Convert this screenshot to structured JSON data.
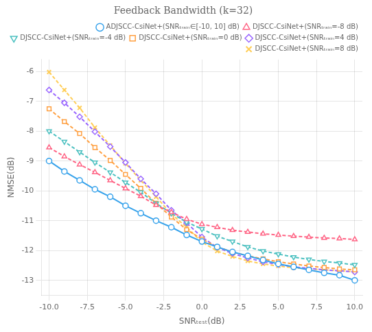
{
  "chart_data": {
    "type": "line",
    "title": "Feedback Bandwidth (k=32)",
    "xlabel": "SNRₜₑₛₜ(dB)",
    "ylabel": "NMSE(dB)",
    "xlim": [
      -10.5,
      10.5
    ],
    "ylim": [
      -13.5,
      -5.6
    ],
    "xticks": [
      {
        "value": -10,
        "label": "-10.0"
      },
      -7.5,
      {
        "value": -5,
        "label": "-5.0"
      },
      -2.5,
      {
        "value": 0,
        "label": "0.0"
      },
      2.5,
      {
        "value": 5,
        "label": "5.0"
      },
      7.5,
      {
        "value": 10,
        "label": "10.0"
      }
    ],
    "yticks": [
      -13,
      -12,
      -11,
      -10,
      -9,
      -8,
      -7,
      -6
    ],
    "grid": true,
    "legend": "upper right",
    "x": [
      -10,
      -9,
      -8,
      -7,
      -6,
      -5,
      -4,
      -3,
      -2,
      -1,
      0,
      1,
      2,
      3,
      4,
      5,
      6,
      7,
      8,
      9,
      10
    ],
    "series": [
      {
        "name": "ADJSCC-CsiNet+(SNRₜᵣₐᵢₙ∈[-10, 10] dB)",
        "marker": "circle",
        "line_style": "solid",
        "values": [
          -9.0,
          -9.35,
          -9.65,
          -9.95,
          -10.2,
          -10.5,
          -10.75,
          -11.0,
          -11.22,
          -11.48,
          -11.7,
          -11.88,
          -12.05,
          -12.18,
          -12.32,
          -12.45,
          -12.55,
          -12.65,
          -12.75,
          -12.83,
          -13.0
        ]
      },
      {
        "name": "DJSCC-CsiNet+(SNRₜᵣₐᵢₙ=-8 dB)",
        "marker": "triangle-up",
        "line_style": "dashed",
        "values": [
          -8.55,
          -8.85,
          -9.12,
          -9.38,
          -9.65,
          -9.92,
          -10.18,
          -10.48,
          -10.72,
          -10.95,
          -11.12,
          -11.22,
          -11.32,
          -11.38,
          -11.44,
          -11.48,
          -11.52,
          -11.55,
          -11.58,
          -11.6,
          -11.63
        ]
      },
      {
        "name": "DJSCC-CsiNet+(SNRₜᵣₐᵢₙ=-4 dB)",
        "marker": "triangle-down",
        "line_style": "dashed",
        "values": [
          -8.0,
          -8.35,
          -8.7,
          -9.05,
          -9.38,
          -9.72,
          -10.05,
          -10.42,
          -10.75,
          -11.05,
          -11.28,
          -11.52,
          -11.7,
          -11.88,
          -12.02,
          -12.12,
          -12.22,
          -12.3,
          -12.37,
          -12.42,
          -12.48
        ]
      },
      {
        "name": "DJSCC-CsiNet+(SNRₜᵣₐᵢₙ=0 dB)",
        "marker": "square",
        "line_style": "dashed",
        "values": [
          -7.25,
          -7.68,
          -8.08,
          -8.55,
          -8.98,
          -9.45,
          -9.92,
          -10.42,
          -10.88,
          -11.3,
          -11.62,
          -11.88,
          -12.05,
          -12.18,
          -12.28,
          -12.38,
          -12.45,
          -12.52,
          -12.57,
          -12.62,
          -12.65
        ]
      },
      {
        "name": "DJSCC-CsiNet+(SNRₜᵣₐᵢₙ=4 dB)",
        "marker": "diamond",
        "line_style": "dashed",
        "values": [
          -6.62,
          -7.05,
          -7.52,
          -8.02,
          -8.52,
          -9.05,
          -9.6,
          -10.1,
          -10.65,
          -11.08,
          -11.55,
          -11.9,
          -12.1,
          -12.25,
          -12.38,
          -12.47,
          -12.55,
          -12.6,
          -12.65,
          -12.68,
          -12.72
        ]
      },
      {
        "name": "DJSCC-CsiNet+(SNRₜᵣₐᵢₙ=8 dB)",
        "marker": "x",
        "line_style": "dashed",
        "values": [
          -6.02,
          -6.62,
          -7.22,
          -7.88,
          -8.48,
          -9.08,
          -9.65,
          -10.2,
          -10.78,
          -11.22,
          -11.72,
          -12.02,
          -12.2,
          -12.35,
          -12.45,
          -12.52,
          -12.58,
          -12.62,
          -12.65,
          -12.68,
          -12.72
        ]
      }
    ]
  }
}
